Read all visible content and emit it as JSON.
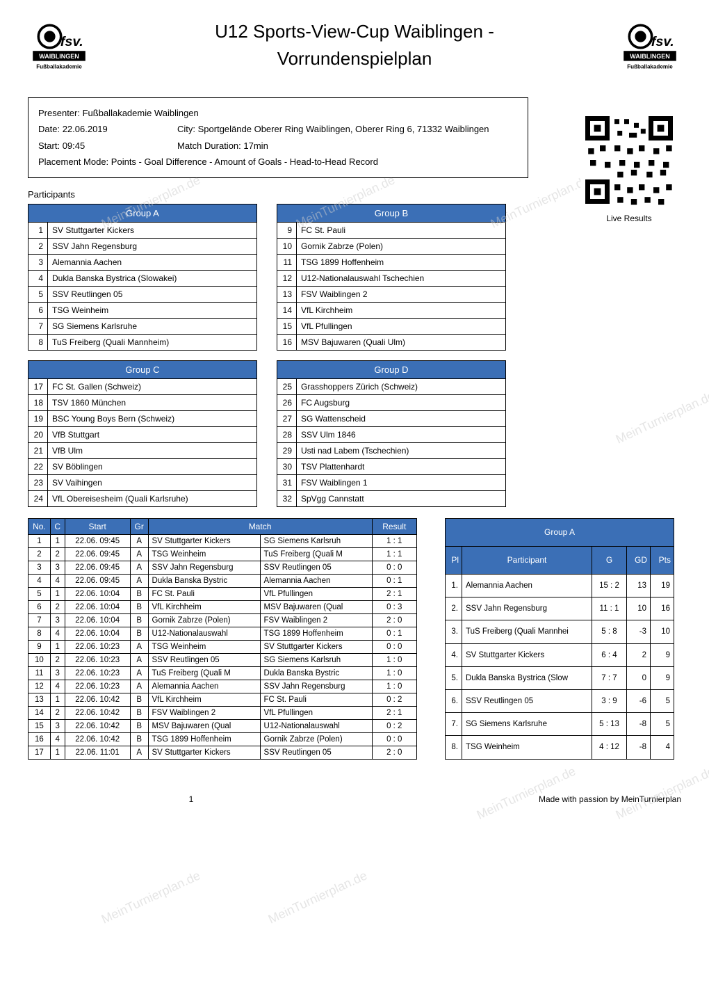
{
  "header": {
    "title_line1": "U12 Sports-View-Cup Waiblingen -",
    "title_line2": "Vorrundenspielplan",
    "logo_main": "fsv.",
    "logo_sub1": "WAIBLINGEN",
    "logo_sub2": "Fußballakademie"
  },
  "info": {
    "presenter_label": "Presenter:",
    "presenter": "Fußballakademie Waiblingen",
    "date_label": "Date:",
    "date": "22.06.2019",
    "city_label": "City:",
    "city": "Sportgelände Oberer Ring Waiblingen, Oberer Ring 6, 71332 Waiblingen",
    "start_label": "Start:",
    "start": "09:45",
    "duration_label": "Match Duration:",
    "duration": "17min",
    "placement_label": "Placement Mode:",
    "placement": "Points - Goal Difference - Amount of Goals - Head-to-Head Record"
  },
  "qr_caption": "Live Results",
  "participants_label": "Participants",
  "groups": {
    "A": {
      "title": "Group A",
      "teams": [
        {
          "n": "1",
          "name": "SV Stuttgarter Kickers"
        },
        {
          "n": "2",
          "name": "SSV Jahn Regensburg"
        },
        {
          "n": "3",
          "name": "Alemannia Aachen"
        },
        {
          "n": "4",
          "name": "Dukla Banska Bystrica (Slowakei)"
        },
        {
          "n": "5",
          "name": "SSV Reutlingen 05"
        },
        {
          "n": "6",
          "name": "TSG Weinheim"
        },
        {
          "n": "7",
          "name": "SG Siemens Karlsruhe"
        },
        {
          "n": "8",
          "name": "TuS Freiberg (Quali Mannheim)"
        }
      ]
    },
    "B": {
      "title": "Group B",
      "teams": [
        {
          "n": "9",
          "name": "FC St. Pauli"
        },
        {
          "n": "10",
          "name": "Gornik Zabrze (Polen)"
        },
        {
          "n": "11",
          "name": "TSG 1899 Hoffenheim"
        },
        {
          "n": "12",
          "name": "U12-Nationalauswahl Tschechien"
        },
        {
          "n": "13",
          "name": "FSV Waiblingen 2"
        },
        {
          "n": "14",
          "name": "VfL Kirchheim"
        },
        {
          "n": "15",
          "name": "VfL Pfullingen"
        },
        {
          "n": "16",
          "name": "MSV Bajuwaren (Quali Ulm)"
        }
      ]
    },
    "C": {
      "title": "Group C",
      "teams": [
        {
          "n": "17",
          "name": "FC St. Gallen (Schweiz)"
        },
        {
          "n": "18",
          "name": "TSV 1860 München"
        },
        {
          "n": "19",
          "name": "BSC Young Boys Bern (Schweiz)"
        },
        {
          "n": "20",
          "name": "VfB Stuttgart"
        },
        {
          "n": "21",
          "name": "VfB Ulm"
        },
        {
          "n": "22",
          "name": "SV Böblingen"
        },
        {
          "n": "23",
          "name": "SV Vaihingen"
        },
        {
          "n": "24",
          "name": "VfL Obereisesheim (Quali Karlsruhe)"
        }
      ]
    },
    "D": {
      "title": "Group D",
      "teams": [
        {
          "n": "25",
          "name": "Grasshoppers Zürich (Schweiz)"
        },
        {
          "n": "26",
          "name": "FC Augsburg"
        },
        {
          "n": "27",
          "name": "SG Wattenscheid"
        },
        {
          "n": "28",
          "name": "SSV Ulm 1846"
        },
        {
          "n": "29",
          "name": "Usti nad Labem (Tschechien)"
        },
        {
          "n": "30",
          "name": "TSV Plattenhardt"
        },
        {
          "n": "31",
          "name": "FSV Waiblingen 1"
        },
        {
          "n": "32",
          "name": "SpVgg Cannstatt"
        }
      ]
    }
  },
  "schedule": {
    "headers": {
      "no": "No.",
      "c": "C",
      "start": "Start",
      "gr": "Gr",
      "match": "Match",
      "result": "Result"
    },
    "rows": [
      {
        "no": "1",
        "c": "1",
        "start": "22.06. 09:45",
        "gr": "A",
        "home": "SV Stuttgarter Kickers",
        "away": "SG Siemens Karlsruh",
        "result": "1  :  1"
      },
      {
        "no": "2",
        "c": "2",
        "start": "22.06. 09:45",
        "gr": "A",
        "home": "TSG Weinheim",
        "away": "TuS Freiberg (Quali M",
        "result": "1  :  1"
      },
      {
        "no": "3",
        "c": "3",
        "start": "22.06. 09:45",
        "gr": "A",
        "home": "SSV Jahn Regensburg",
        "away": "SSV Reutlingen 05",
        "result": "0  :  0"
      },
      {
        "no": "4",
        "c": "4",
        "start": "22.06. 09:45",
        "gr": "A",
        "home": "Dukla Banska Bystric",
        "away": "Alemannia Aachen",
        "result": "0  :  1"
      },
      {
        "no": "5",
        "c": "1",
        "start": "22.06. 10:04",
        "gr": "B",
        "home": "FC St. Pauli",
        "away": "VfL Pfullingen",
        "result": "2  :  1"
      },
      {
        "no": "6",
        "c": "2",
        "start": "22.06. 10:04",
        "gr": "B",
        "home": "VfL Kirchheim",
        "away": "MSV Bajuwaren (Qual",
        "result": "0  :  3"
      },
      {
        "no": "7",
        "c": "3",
        "start": "22.06. 10:04",
        "gr": "B",
        "home": "Gornik Zabrze (Polen)",
        "away": "FSV Waiblingen 2",
        "result": "2  :  0"
      },
      {
        "no": "8",
        "c": "4",
        "start": "22.06. 10:04",
        "gr": "B",
        "home": "U12-Nationalauswahl",
        "away": "TSG 1899 Hoffenheim",
        "result": "0  :  1"
      },
      {
        "no": "9",
        "c": "1",
        "start": "22.06. 10:23",
        "gr": "A",
        "home": "TSG Weinheim",
        "away": "SV Stuttgarter Kickers",
        "result": "0  :  0"
      },
      {
        "no": "10",
        "c": "2",
        "start": "22.06. 10:23",
        "gr": "A",
        "home": "SSV Reutlingen 05",
        "away": "SG Siemens Karlsruh",
        "result": "1  :  0"
      },
      {
        "no": "11",
        "c": "3",
        "start": "22.06. 10:23",
        "gr": "A",
        "home": "TuS Freiberg (Quali M",
        "away": "Dukla Banska Bystric",
        "result": "1  :  0"
      },
      {
        "no": "12",
        "c": "4",
        "start": "22.06. 10:23",
        "gr": "A",
        "home": "Alemannia Aachen",
        "away": "SSV Jahn Regensburg",
        "result": "1  :  0"
      },
      {
        "no": "13",
        "c": "1",
        "start": "22.06. 10:42",
        "gr": "B",
        "home": "VfL Kirchheim",
        "away": "FC St. Pauli",
        "result": "0  :  2"
      },
      {
        "no": "14",
        "c": "2",
        "start": "22.06. 10:42",
        "gr": "B",
        "home": "FSV Waiblingen 2",
        "away": "VfL Pfullingen",
        "result": "2  :  1"
      },
      {
        "no": "15",
        "c": "3",
        "start": "22.06. 10:42",
        "gr": "B",
        "home": "MSV Bajuwaren (Qual",
        "away": "U12-Nationalauswahl",
        "result": "0  :  2"
      },
      {
        "no": "16",
        "c": "4",
        "start": "22.06. 10:42",
        "gr": "B",
        "home": "TSG 1899 Hoffenheim",
        "away": "Gornik Zabrze (Polen)",
        "result": "0  :  0"
      },
      {
        "no": "17",
        "c": "1",
        "start": "22.06. 11:01",
        "gr": "A",
        "home": "SV Stuttgarter Kickers",
        "away": "SSV Reutlingen 05",
        "result": "2  :  0"
      }
    ]
  },
  "standings": {
    "title": "Group A",
    "headers": {
      "pl": "Pl",
      "participant": "Participant",
      "g": "G",
      "gd": "GD",
      "pts": "Pts"
    },
    "rows": [
      {
        "pl": "1.",
        "name": "Alemannia Aachen",
        "g": "15  :  2",
        "gd": "13",
        "pts": "19"
      },
      {
        "pl": "2.",
        "name": "SSV Jahn Regensburg",
        "g": "11  :  1",
        "gd": "10",
        "pts": "16"
      },
      {
        "pl": "3.",
        "name": "TuS Freiberg (Quali Mannhei",
        "g": "5  :  8",
        "gd": "-3",
        "pts": "10"
      },
      {
        "pl": "4.",
        "name": "SV Stuttgarter Kickers",
        "g": "6  :  4",
        "gd": "2",
        "pts": "9"
      },
      {
        "pl": "5.",
        "name": "Dukla Banska Bystrica (Slow",
        "g": "7  :  7",
        "gd": "0",
        "pts": "9"
      },
      {
        "pl": "6.",
        "name": "SSV Reutlingen 05",
        "g": "3  :  9",
        "gd": "-6",
        "pts": "5"
      },
      {
        "pl": "7.",
        "name": "SG Siemens Karlsruhe",
        "g": "5  :  13",
        "gd": "-8",
        "pts": "5"
      },
      {
        "pl": "8.",
        "name": "TSG Weinheim",
        "g": "4  :  12",
        "gd": "-8",
        "pts": "4"
      }
    ]
  },
  "watermarks": {
    "text": "MeinTurnierplan.de"
  },
  "footer": {
    "page": "1",
    "credit": "Made with passion by MeinTurnierplan"
  },
  "colors": {
    "header_bg": "#3b6fb6",
    "header_fg": "#ffffff",
    "border": "#000000",
    "watermark": "#cccccc"
  }
}
